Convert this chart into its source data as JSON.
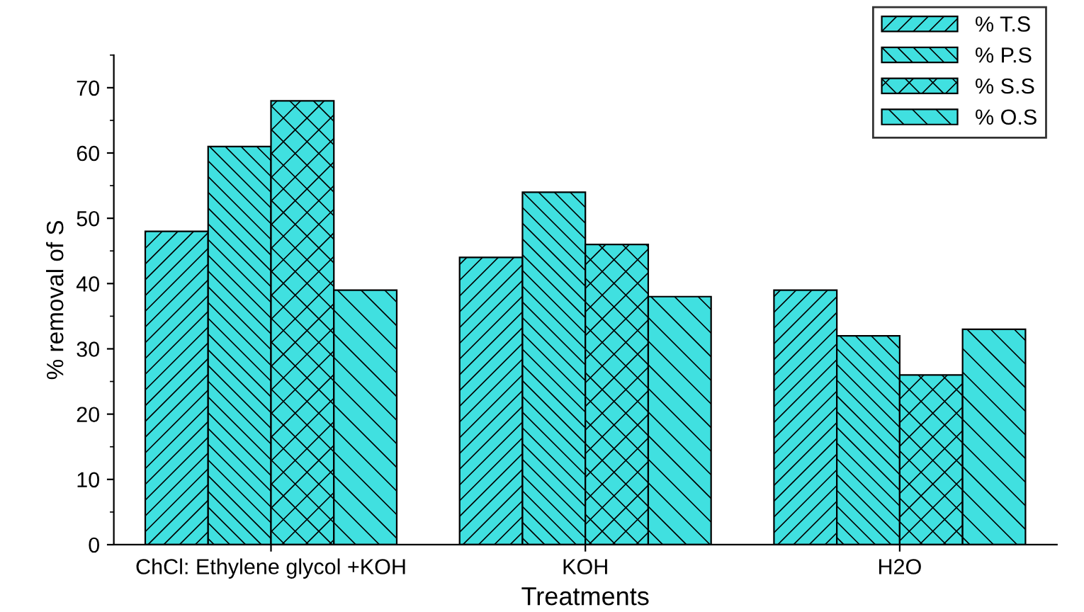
{
  "chart_data": {
    "type": "bar",
    "xlabel": "Treatments",
    "ylabel": "% removal of S",
    "categories": [
      "ChCl: Ethylene glycol +KOH",
      "KOH",
      "H2O"
    ],
    "series": [
      {
        "name": "% T.S",
        "color": "#40e0e0",
        "values": [
          48,
          44,
          39
        ]
      },
      {
        "name": "% P.S",
        "color": "#40e0e0",
        "values": [
          61,
          54,
          32
        ]
      },
      {
        "name": "% S.S",
        "color": "#40e0e0",
        "values": [
          68,
          46,
          26
        ]
      },
      {
        "name": "% O.S",
        "color": "#40e0e0",
        "values": [
          39,
          38,
          33
        ]
      }
    ],
    "ylim": [
      0,
      75
    ],
    "yticks": [
      0,
      10,
      20,
      30,
      40,
      50,
      60,
      70
    ],
    "grid": false,
    "legend": "top right"
  }
}
